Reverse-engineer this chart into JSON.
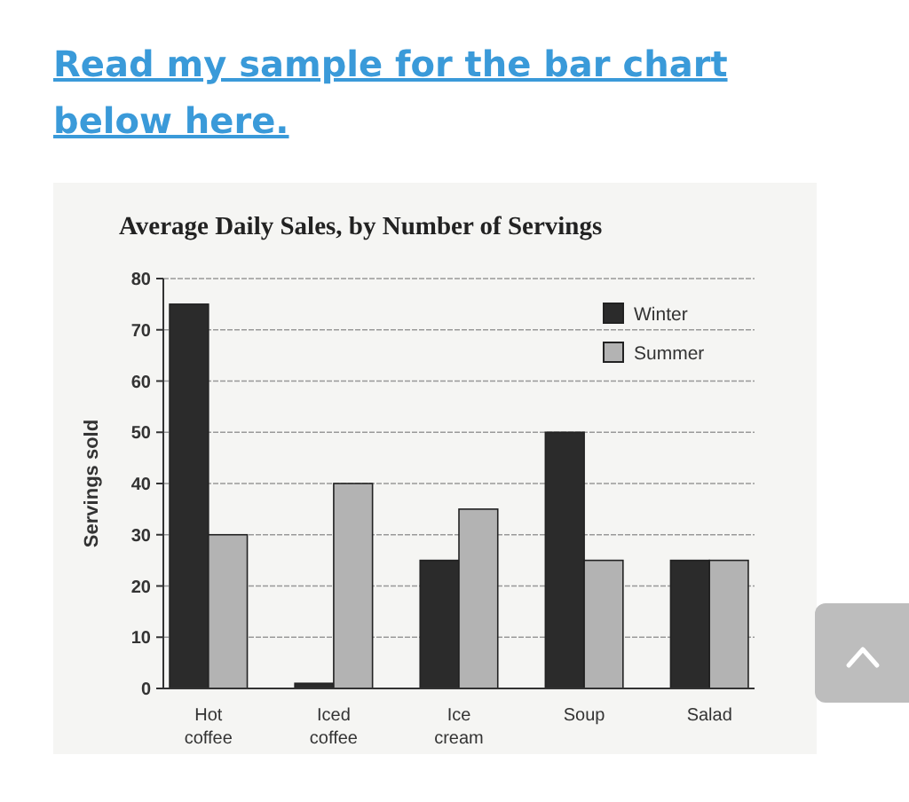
{
  "chart_data": {
    "type": "bar",
    "title": "Average Daily Sales, by Number of Servings",
    "ylabel": "Servings sold",
    "annotations": [
      "Read my sample for the bar chart below here."
    ],
    "categories": [
      "Hot coffee",
      "Iced coffee",
      "Ice cream",
      "Soup",
      "Salad"
    ],
    "series": [
      {
        "name": "Winter",
        "color": "#2b2b2b",
        "values": [
          75,
          1,
          25,
          50,
          25
        ]
      },
      {
        "name": "Summer",
        "color": "#b3b3b3",
        "values": [
          30,
          40,
          35,
          25,
          25
        ]
      }
    ],
    "ylim": [
      0,
      80
    ],
    "yticks": [
      0,
      10,
      20,
      30,
      40,
      50,
      60,
      70,
      80
    ],
    "grid": "y",
    "legend": "top right"
  }
}
